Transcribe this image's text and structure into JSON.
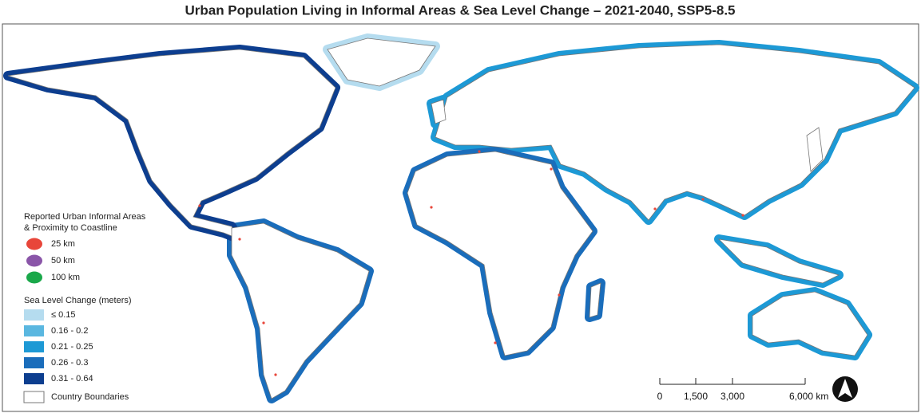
{
  "title": "Urban Population Living in Informal Areas & Sea Level Change – 2021-2040, SSP5-8.5",
  "legend": {
    "informal_title": [
      "Reported Urban Informal Areas",
      "& Proximity to Coastline"
    ],
    "informal_items": [
      {
        "label": "25 km",
        "color": "#e8463a"
      },
      {
        "label": "50 km",
        "color": "#8a55a8"
      },
      {
        "label": "100 km",
        "color": "#1aa84a"
      }
    ],
    "sea_title": "Sea Level Change (meters)",
    "sea_items": [
      {
        "label": "≤ 0.15",
        "color": "#b5dcef"
      },
      {
        "label": "0.16 - 0.2",
        "color": "#5ab7e0"
      },
      {
        "label": "0.21 - 0.25",
        "color": "#1d99d5"
      },
      {
        "label": "0.26 - 0.3",
        "color": "#1a6dbb"
      },
      {
        "label": "0.31 - 0.64",
        "color": "#0d3e8f"
      }
    ],
    "boundaries": "Country Boundaries"
  },
  "scale_bar": {
    "labels": [
      "0",
      "1,500",
      "3,000",
      "6,000 km"
    ]
  }
}
